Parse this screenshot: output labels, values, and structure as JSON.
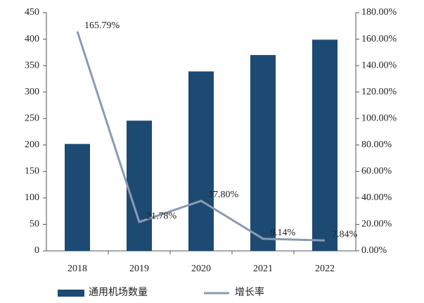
{
  "chart_data": {
    "type": "bar_line",
    "categories": [
      "2018",
      "2019",
      "2020",
      "2021",
      "2022"
    ],
    "series": [
      {
        "name": "通用机场数量",
        "type": "bar",
        "color": "#1c4a72",
        "values": [
          202,
          246,
          339,
          370,
          399
        ]
      },
      {
        "name": "增长率",
        "type": "line",
        "axis": "y2",
        "color": "#8a9bb4",
        "values": [
          165.79,
          21.78,
          37.8,
          9.14,
          7.84
        ],
        "value_labels": [
          "165.79%",
          "21.78%",
          "37.80%",
          "9.14%",
          "7.84%"
        ]
      }
    ],
    "ylim": [
      0,
      450
    ],
    "yticks": [
      0,
      50,
      100,
      150,
      200,
      250,
      300,
      350,
      400,
      450
    ],
    "y2lim": [
      0,
      180
    ],
    "y2ticks": [
      {
        "value": 0,
        "label": "0.00%"
      },
      {
        "value": 20,
        "label": "20.00%"
      },
      {
        "value": 40,
        "label": "40.00%"
      },
      {
        "value": 60,
        "label": "60.00%"
      },
      {
        "value": 80,
        "label": "80.00%"
      },
      {
        "value": 100,
        "label": "100.00%"
      },
      {
        "value": 120,
        "label": "120.00%"
      },
      {
        "value": 140,
        "label": "140.00%"
      },
      {
        "value": 160,
        "label": "160.00%"
      },
      {
        "value": 180,
        "label": "180.00%"
      }
    ],
    "legend": "bottom"
  }
}
